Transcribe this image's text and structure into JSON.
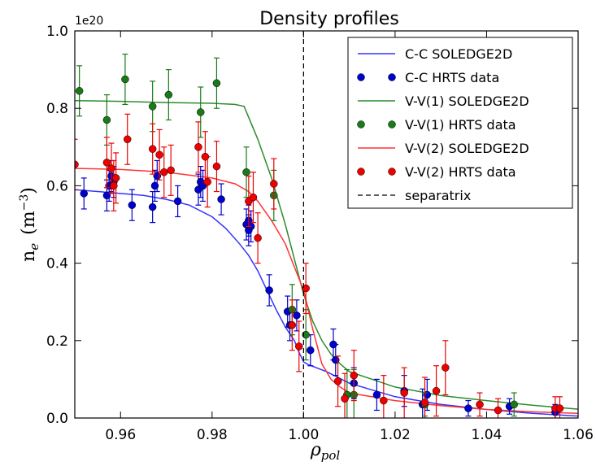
{
  "chart_data": {
    "type": "scatter",
    "title": "Density profiles",
    "xlabel": "ρ",
    "xlabel_sub": "pol",
    "ylabel_main": "n",
    "ylabel_sub": "e",
    "ylabel_units": "(m",
    "ylabel_exp": "−3",
    "ylabel_close": ")",
    "y_offset_label": "1e20",
    "xlim": [
      0.95,
      1.06
    ],
    "ylim": [
      0.0,
      1.0
    ],
    "xticks": [
      0.96,
      0.98,
      1.0,
      1.02,
      1.04,
      1.06
    ],
    "xtick_labels": [
      "0.96",
      "0.98",
      "1.00",
      "1.02",
      "1.04",
      "1.06"
    ],
    "yticks": [
      0.0,
      0.2,
      0.4,
      0.6,
      0.8,
      1.0
    ],
    "ytick_labels": [
      "0.0",
      "0.2",
      "0.4",
      "0.6",
      "0.8",
      "1.0"
    ],
    "grid": false,
    "legend_position": "top-right",
    "separatrix_x": 1.0,
    "lines": [
      {
        "name": "C-C SOLEDGE2D",
        "color": "#3333ff",
        "x": [
          0.95,
          0.955,
          0.96,
          0.965,
          0.97,
          0.975,
          0.98,
          0.983,
          0.986,
          0.988,
          0.99,
          0.992,
          0.994,
          0.996,
          0.998,
          0.999,
          1.0,
          1.001,
          1.005,
          1.01,
          1.02,
          1.03,
          1.04,
          1.05,
          1.06
        ],
        "y": [
          0.59,
          0.585,
          0.58,
          0.575,
          0.565,
          0.55,
          0.52,
          0.49,
          0.45,
          0.42,
          0.38,
          0.33,
          0.28,
          0.235,
          0.2,
          0.17,
          0.145,
          0.138,
          0.12,
          0.09,
          0.055,
          0.035,
          0.022,
          0.012,
          0.005
        ]
      },
      {
        "name": "V-V(1) SOLEDGE2D",
        "color": "#2c8c2c",
        "x": [
          0.95,
          0.96,
          0.97,
          0.98,
          0.985,
          0.987,
          0.99,
          0.993,
          0.996,
          0.998,
          1.0,
          1.002,
          1.004,
          1.006,
          1.008,
          1.01,
          1.02,
          1.03,
          1.04,
          1.05,
          1.06
        ],
        "y": [
          0.82,
          0.818,
          0.815,
          0.813,
          0.81,
          0.805,
          0.72,
          0.62,
          0.5,
          0.41,
          0.32,
          0.25,
          0.2,
          0.165,
          0.14,
          0.12,
          0.08,
          0.058,
          0.045,
          0.033,
          0.023
        ]
      },
      {
        "name": "V-V(2) SOLEDGE2D",
        "color": "#ff3333",
        "x": [
          0.95,
          0.96,
          0.97,
          0.98,
          0.985,
          0.988,
          0.99,
          0.993,
          0.996,
          0.998,
          1.0,
          1.002,
          1.004,
          1.006,
          1.008,
          1.01,
          1.02,
          1.03,
          1.04,
          1.05,
          1.06
        ],
        "y": [
          0.645,
          0.642,
          0.635,
          0.62,
          0.605,
          0.585,
          0.56,
          0.51,
          0.45,
          0.39,
          0.33,
          0.23,
          0.14,
          0.1,
          0.08,
          0.065,
          0.045,
          0.032,
          0.022,
          0.016,
          0.012
        ]
      }
    ],
    "points": [
      {
        "name": "C-C HRTS data",
        "color": "#0000cc",
        "x": [
          0.952,
          0.957,
          0.9575,
          0.958,
          0.9585,
          0.9625,
          0.967,
          0.9675,
          0.968,
          0.9725,
          0.977,
          0.9775,
          0.978,
          0.982,
          0.9875,
          0.988,
          0.988,
          0.9885,
          0.9925,
          0.9965,
          0.997,
          0.9985,
          1.0015,
          1.0065,
          1.007,
          1.011,
          1.016,
          1.022,
          1.026,
          1.027,
          1.036,
          1.045,
          1.055
        ],
        "y": [
          0.58,
          0.575,
          0.6,
          0.625,
          0.61,
          0.55,
          0.545,
          0.6,
          0.625,
          0.56,
          0.59,
          0.61,
          0.6,
          0.565,
          0.5,
          0.51,
          0.485,
          0.495,
          0.33,
          0.275,
          0.24,
          0.265,
          0.175,
          0.19,
          0.15,
          0.09,
          0.06,
          0.07,
          0.035,
          0.06,
          0.025,
          0.03,
          0.015
        ],
        "err": [
          0.04,
          0.04,
          0.04,
          0.04,
          0.04,
          0.04,
          0.04,
          0.04,
          0.04,
          0.04,
          0.04,
          0.04,
          0.04,
          0.04,
          0.04,
          0.04,
          0.04,
          0.04,
          0.04,
          0.04,
          0.04,
          0.04,
          0.04,
          0.04,
          0.04,
          0.04,
          0.04,
          0.04,
          0.04,
          0.04,
          0.02,
          0.02,
          0.02
        ]
      },
      {
        "name": "V-V(1) HRTS data",
        "color": "#1a7a1a",
        "x": [
          0.951,
          0.957,
          0.961,
          0.967,
          0.9705,
          0.9775,
          0.981,
          0.9875,
          0.9935,
          0.9975,
          1.0005,
          1.0095,
          1.011,
          1.0265,
          1.046
        ],
        "y": [
          0.845,
          0.77,
          0.875,
          0.805,
          0.835,
          0.79,
          0.865,
          0.635,
          0.575,
          0.28,
          0.215,
          0.06,
          0.06,
          0.035,
          0.035
        ],
        "err": [
          0.065,
          0.065,
          0.065,
          0.065,
          0.065,
          0.065,
          0.065,
          0.065,
          0.065,
          0.065,
          0.065,
          0.065,
          0.065,
          0.03,
          0.03
        ]
      },
      {
        "name": "V-V(2) HRTS data",
        "color": "#ee0000",
        "x": [
          0.95,
          0.957,
          0.958,
          0.9585,
          0.959,
          0.9615,
          0.967,
          0.9685,
          0.9695,
          0.971,
          0.977,
          0.9785,
          0.979,
          0.981,
          0.988,
          0.989,
          0.99,
          0.9935,
          0.9975,
          0.999,
          1.0005,
          1.0075,
          1.009,
          1.011,
          1.0175,
          1.022,
          1.0265,
          1.029,
          1.031,
          1.0385,
          1.0425,
          1.055,
          1.056
        ],
        "y": [
          0.655,
          0.66,
          0.645,
          0.6,
          0.62,
          0.72,
          0.695,
          0.68,
          0.635,
          0.64,
          0.7,
          0.675,
          0.61,
          0.65,
          0.56,
          0.57,
          0.465,
          0.605,
          0.24,
          0.185,
          0.335,
          0.095,
          0.05,
          0.11,
          0.045,
          0.065,
          0.04,
          0.07,
          0.13,
          0.035,
          0.02,
          0.025,
          0.025
        ],
        "err": [
          0.065,
          0.065,
          0.065,
          0.065,
          0.065,
          0.065,
          0.065,
          0.065,
          0.065,
          0.065,
          0.065,
          0.065,
          0.065,
          0.065,
          0.065,
          0.065,
          0.065,
          0.065,
          0.065,
          0.065,
          0.065,
          0.065,
          0.065,
          0.065,
          0.065,
          0.065,
          0.065,
          0.065,
          0.07,
          0.03,
          0.03,
          0.03,
          0.03
        ]
      }
    ],
    "legend": [
      {
        "label": "C-C SOLEDGE2D",
        "kind": "line",
        "color": "#3333ff"
      },
      {
        "label": "C-C HRTS data",
        "kind": "marker",
        "color": "#0000cc"
      },
      {
        "label": "V-V(1) SOLEDGE2D",
        "kind": "line",
        "color": "#2c8c2c"
      },
      {
        "label": "V-V(1) HRTS data",
        "kind": "marker",
        "color": "#1a7a1a"
      },
      {
        "label": "V-V(2) SOLEDGE2D",
        "kind": "line",
        "color": "#ff3333"
      },
      {
        "label": "V-V(2) HRTS data",
        "kind": "marker",
        "color": "#ee0000"
      },
      {
        "label": "separatrix",
        "kind": "dashed",
        "color": "#000000"
      }
    ]
  }
}
